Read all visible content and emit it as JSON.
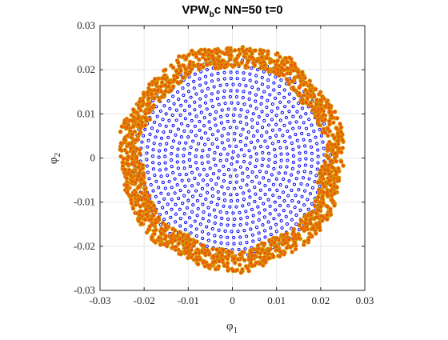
{
  "chart_data": {
    "type": "scatter",
    "title": {
      "main": "VPW",
      "subscript": "b",
      "rest": "c NN=50 t=0"
    },
    "xlabel": {
      "symbol": "φ",
      "subscript": "1"
    },
    "ylabel": {
      "symbol": "φ",
      "subscript": "2"
    },
    "xlim": [
      -0.03,
      0.03
    ],
    "ylim": [
      -0.03,
      0.03
    ],
    "xticks": [
      "-0.03",
      "-0.02",
      "-0.01",
      "0",
      "0.01",
      "0.02",
      "0.03"
    ],
    "yticks": [
      "-0.03",
      "-0.02",
      "-0.01",
      "0",
      "0.01",
      "0.02",
      "0.03"
    ],
    "grid": true,
    "series": [
      {
        "marker": "open-circle",
        "color": "#0000ff",
        "shape": "disk",
        "radius": 0.0222,
        "rings": 16,
        "points_per_ring_step": 6
      },
      {
        "marker": "filled-circle",
        "color": "#e8580c",
        "edge_color": "#d7a400",
        "shape": "annulus",
        "inner_radius": 0.0208,
        "outer_radius": 0.0255
      }
    ]
  }
}
